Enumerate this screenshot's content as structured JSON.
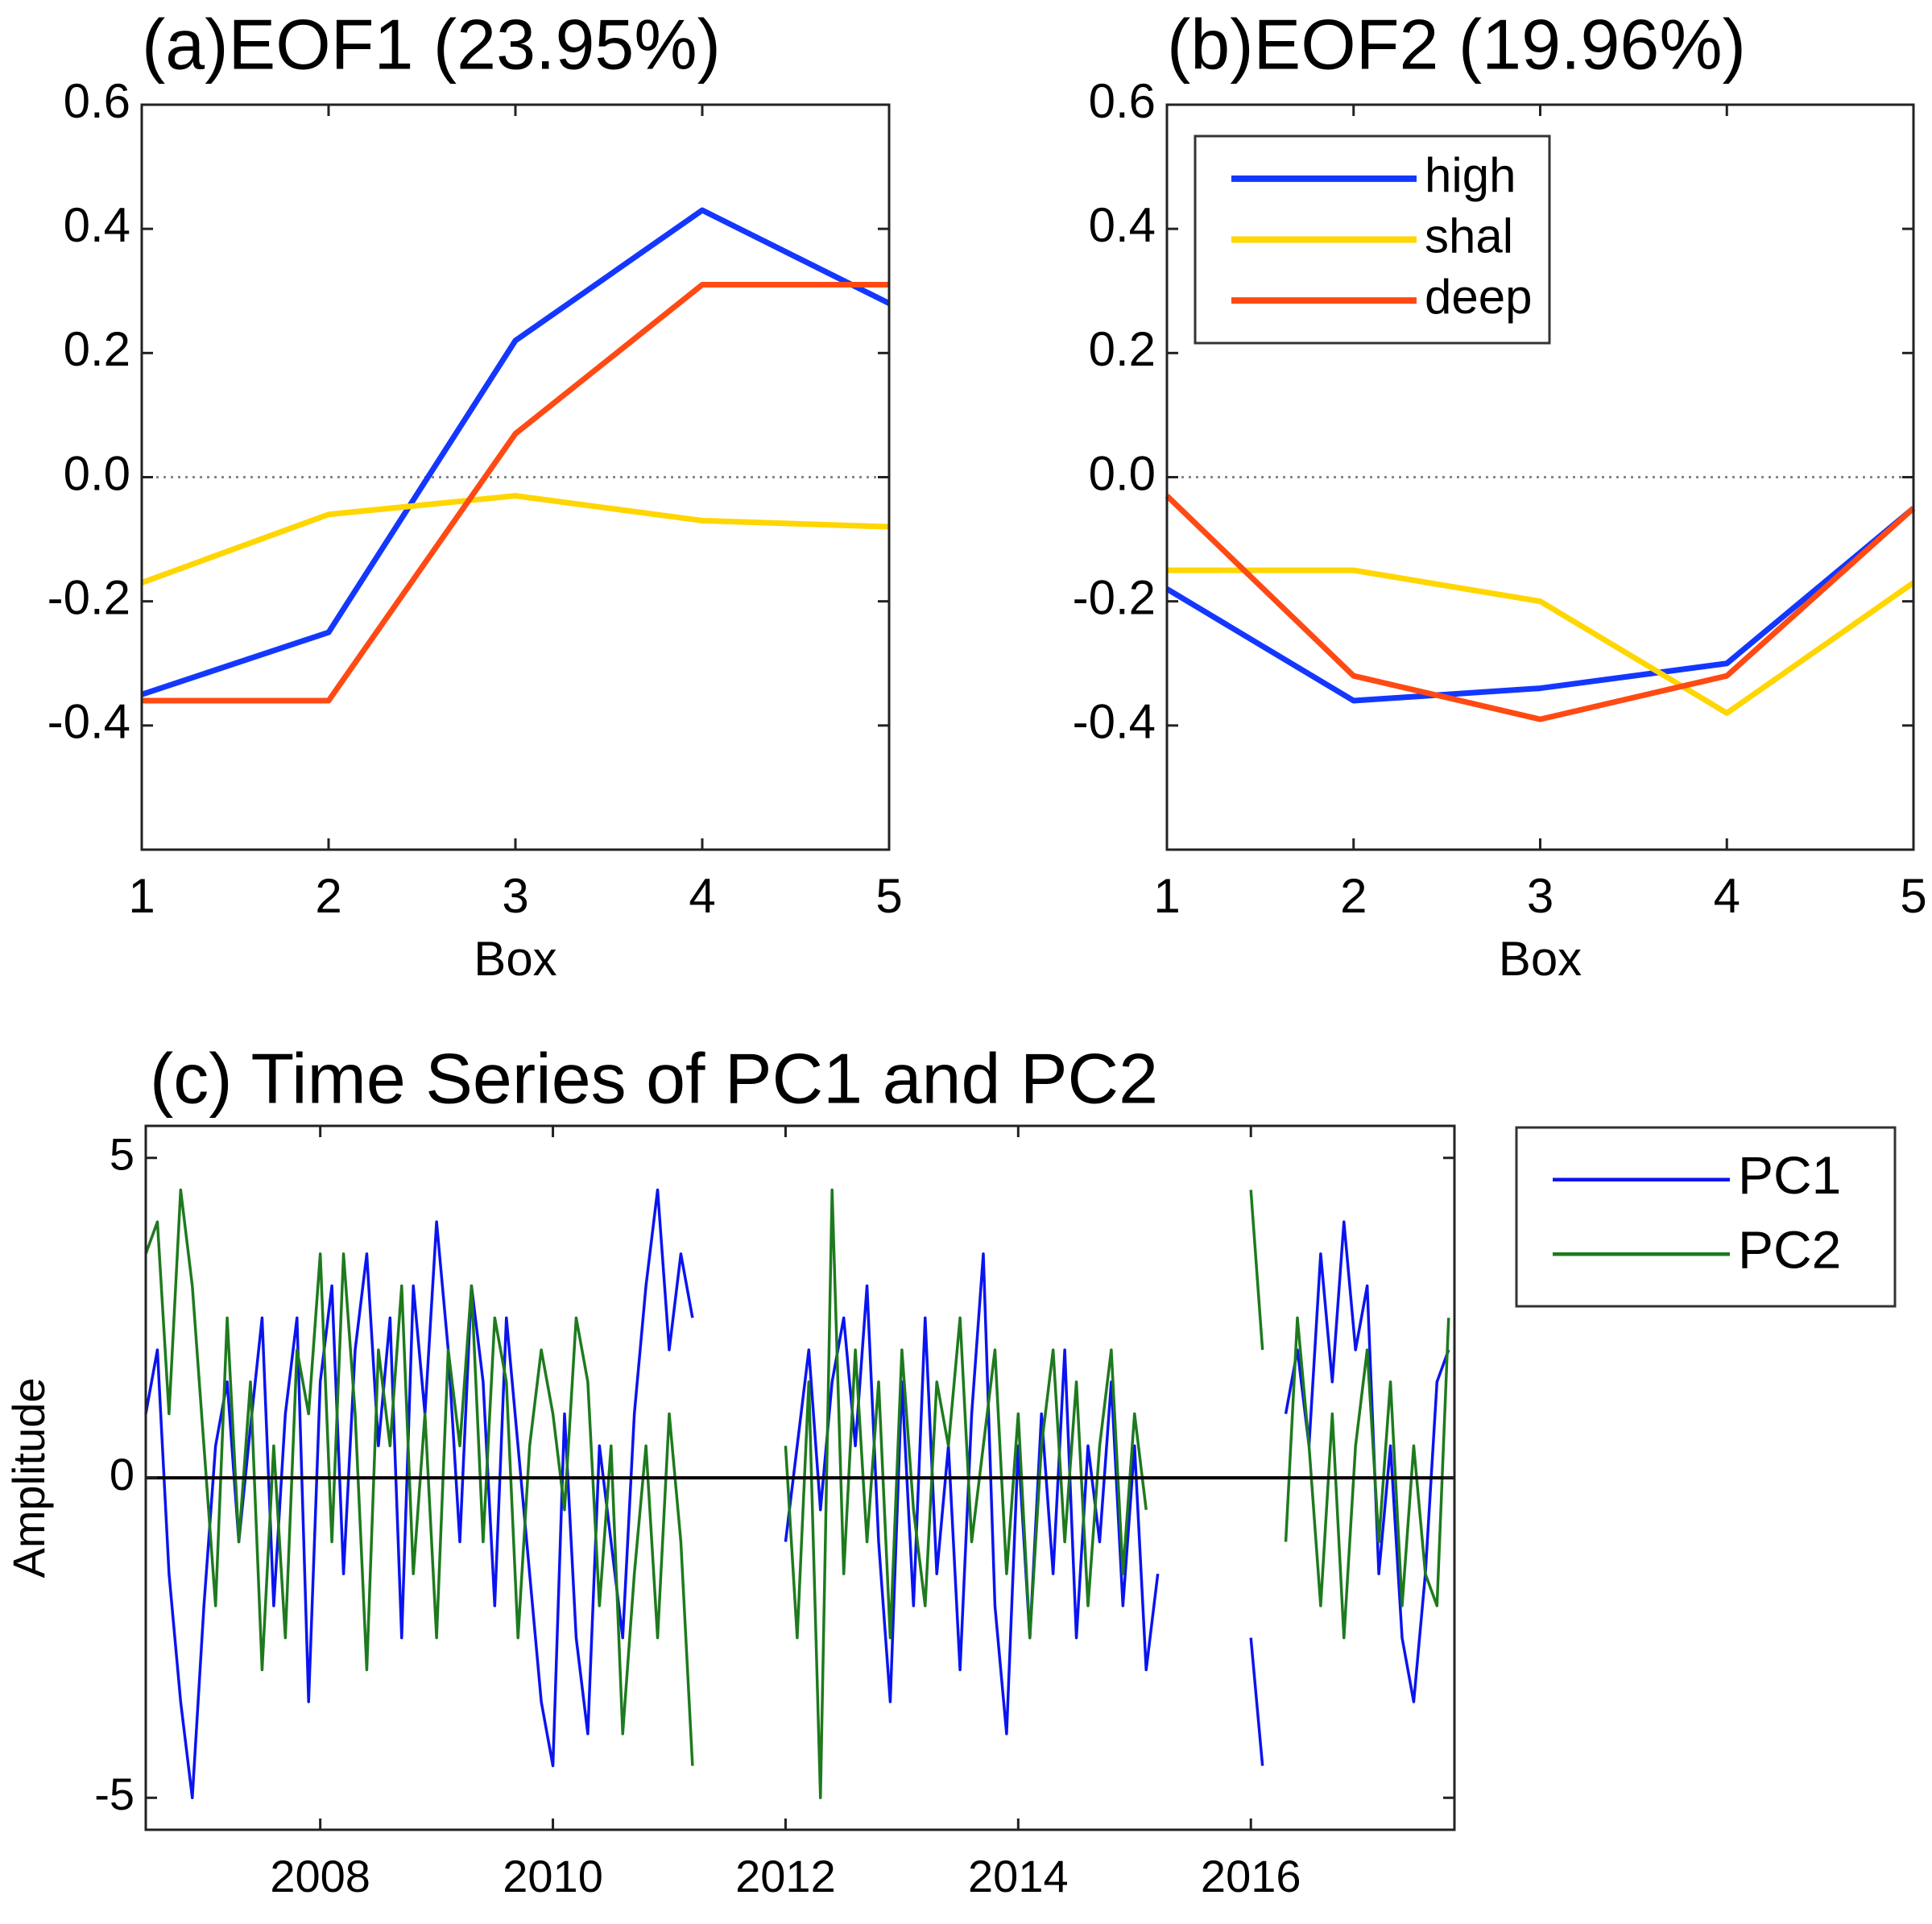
{
  "chart_data": [
    {
      "type": "line",
      "title": "(a)EOF1 (23.95%)",
      "xlabel": "Box",
      "x": [
        1,
        2,
        3,
        4,
        5
      ],
      "xlim": [
        1,
        5
      ],
      "xticks": [
        1,
        2,
        3,
        4,
        5
      ],
      "ylim": [
        -0.6,
        0.6
      ],
      "yticks": [
        0.6,
        0.4,
        0.2,
        {
          "value": 0,
          "label": "0.0"
        },
        -0.2,
        -0.4
      ],
      "zero_line": "dotted",
      "series": [
        {
          "name": "high",
          "color": "#1437ff",
          "values": [
            -0.35,
            -0.25,
            0.22,
            0.43,
            0.28
          ]
        },
        {
          "name": "shal",
          "color": "#ffd600",
          "values": [
            -0.17,
            -0.06,
            -0.03,
            -0.07,
            -0.08
          ]
        },
        {
          "name": "deep",
          "color": "#ff4a14",
          "values": [
            -0.36,
            -0.36,
            0.07,
            0.31,
            0.31
          ]
        }
      ]
    },
    {
      "type": "line",
      "title": "(b)EOF2 (19.96%)",
      "xlabel": "Box",
      "x": [
        1,
        2,
        3,
        4,
        5
      ],
      "xlim": [
        1,
        5
      ],
      "xticks": [
        1,
        2,
        3,
        4,
        5
      ],
      "ylim": [
        -0.6,
        0.6
      ],
      "yticks": [
        0.6,
        0.4,
        0.2,
        {
          "value": 0,
          "label": "0.0"
        },
        -0.2,
        -0.4
      ],
      "zero_line": "dotted",
      "legend": "upper left",
      "series": [
        {
          "name": "high",
          "color": "#1437ff",
          "values": [
            -0.18,
            -0.36,
            -0.34,
            -0.3,
            -0.05
          ]
        },
        {
          "name": "shal",
          "color": "#ffd600",
          "values": [
            -0.15,
            -0.15,
            -0.2,
            -0.38,
            -0.17
          ]
        },
        {
          "name": "deep",
          "color": "#ff4a14",
          "values": [
            -0.03,
            -0.32,
            -0.39,
            -0.32,
            -0.05
          ]
        }
      ]
    },
    {
      "type": "line",
      "title": "(c) Time Series of PC1 and PC2",
      "ylabel": "Amplitude",
      "xlim": [
        2006.5,
        2017.75
      ],
      "xticks": [
        2008,
        2010,
        2012,
        2014,
        2016
      ],
      "ylim": [
        -5.5,
        5.5
      ],
      "yticks": [
        5,
        0,
        -5
      ],
      "zero_line": "solid",
      "legend": "outside right",
      "x": [
        2006.5,
        2006.6,
        2006.7,
        2006.8,
        2006.9,
        2007.0,
        2007.1,
        2007.2,
        2007.3,
        2007.4,
        2007.5,
        2007.6,
        2007.7,
        2007.8,
        2007.9,
        2008.0,
        2008.1,
        2008.2,
        2008.3,
        2008.4,
        2008.5,
        2008.6,
        2008.7,
        2008.8,
        2008.9,
        2009.0,
        2009.1,
        2009.2,
        2009.3,
        2009.4,
        2009.5,
        2009.6,
        2009.7,
        2009.8,
        2009.9,
        2010.0,
        2010.1,
        2010.2,
        2010.3,
        2010.4,
        2010.5,
        2010.6,
        2010.7,
        2010.8,
        2010.9,
        2011.0,
        2011.1,
        2011.2,
        2011.3,
        2011.4,
        2011.5,
        2011.6,
        2011.7,
        2011.8,
        2011.9,
        2012.0,
        2012.1,
        2012.2,
        2012.3,
        2012.4,
        2012.5,
        2012.6,
        2012.7,
        2012.8,
        2012.9,
        2013.0,
        2013.1,
        2013.2,
        2013.3,
        2013.4,
        2013.5,
        2013.6,
        2013.7,
        2013.8,
        2013.9,
        2014.0,
        2014.1,
        2014.2,
        2014.3,
        2014.4,
        2014.5,
        2014.6,
        2014.7,
        2014.8,
        2014.9,
        2015.0,
        2015.1,
        2015.2,
        2015.3,
        2015.4,
        2015.5,
        2015.6,
        2015.7,
        2015.8,
        2015.9,
        2016.0,
        2016.1,
        2016.2,
        2016.3,
        2016.4,
        2016.5,
        2016.6,
        2016.7,
        2016.8,
        2016.9,
        2017.0,
        2017.1,
        2017.2,
        2017.3,
        2017.4,
        2017.5,
        2017.6,
        2017.7
      ],
      "series": [
        {
          "name": "PC1",
          "color": "#0a14f0",
          "values": [
            1.0,
            2.0,
            -1.5,
            -3.5,
            -5.0,
            -2.0,
            0.5,
            1.5,
            -1.0,
            0.8,
            2.5,
            -2.0,
            1.0,
            2.5,
            -3.5,
            1.5,
            3.0,
            -1.5,
            2.0,
            3.5,
            0.5,
            2.5,
            -2.5,
            3.0,
            1.0,
            4.0,
            2.0,
            -1.0,
            3.0,
            1.5,
            -2.0,
            2.5,
            0.5,
            -1.5,
            -3.5,
            -4.5,
            1.0,
            -2.5,
            -4.0,
            0.5,
            -1.0,
            -2.5,
            1.0,
            3.0,
            4.5,
            2.0,
            3.5,
            2.5,
            null,
            null,
            null,
            null,
            null,
            null,
            null,
            -1.0,
            0.5,
            2.0,
            -0.5,
            1.5,
            2.5,
            0.5,
            3.0,
            -1.0,
            -3.5,
            1.5,
            -2.0,
            2.5,
            -1.5,
            0.5,
            -3.0,
            1.0,
            3.5,
            -2.0,
            -4.0,
            0.5,
            -2.5,
            1.0,
            -1.5,
            2.0,
            -2.5,
            0.5,
            -1.0,
            1.5,
            -2.0,
            0.5,
            -3.0,
            -1.5,
            null,
            null,
            null,
            null,
            null,
            null,
            null,
            -2.5,
            -4.5,
            null,
            1.0,
            2.0,
            0.5,
            3.5,
            1.5,
            4.0,
            2.0,
            3.0,
            -1.5,
            0.5,
            -2.5,
            -3.5,
            -1.5,
            1.5,
            2.0
          ]
        },
        {
          "name": "PC2",
          "color": "#1e7a1e",
          "values": [
            3.5,
            4.0,
            1.0,
            4.5,
            3.0,
            0.5,
            -2.0,
            2.5,
            -1.0,
            1.5,
            -3.0,
            0.5,
            -2.5,
            2.0,
            1.0,
            3.5,
            -1.0,
            3.5,
            1.0,
            -3.0,
            2.0,
            0.5,
            3.0,
            -1.5,
            1.0,
            -2.5,
            2.0,
            0.5,
            3.0,
            -1.0,
            2.5,
            1.5,
            -2.5,
            0.5,
            2.0,
            1.0,
            -0.5,
            2.5,
            1.5,
            -2.0,
            0.5,
            -4.0,
            -1.5,
            0.5,
            -2.5,
            1.0,
            -1.0,
            -4.5,
            null,
            null,
            null,
            null,
            null,
            null,
            null,
            0.5,
            -2.5,
            1.5,
            -5.0,
            4.5,
            -1.5,
            2.0,
            -1.0,
            1.5,
            -2.5,
            2.0,
            -0.5,
            -2.0,
            1.5,
            0.5,
            2.5,
            -1.0,
            0.5,
            2.0,
            -1.5,
            1.0,
            -2.5,
            0.5,
            2.0,
            -1.0,
            1.5,
            -2.0,
            0.5,
            2.0,
            -1.5,
            1.0,
            -0.5,
            null,
            null,
            null,
            null,
            null,
            null,
            null,
            null,
            4.5,
            2.0,
            null,
            -1.0,
            2.5,
            0.5,
            -2.0,
            1.0,
            -2.5,
            0.5,
            2.0,
            -1.0,
            1.5,
            -2.0,
            0.5,
            -1.5,
            -2.0,
            2.5
          ]
        }
      ]
    }
  ]
}
